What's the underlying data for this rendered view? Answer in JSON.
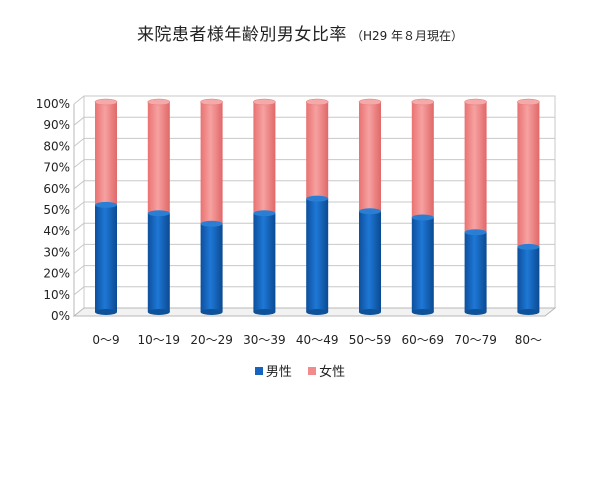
{
  "chart_data": {
    "type": "bar",
    "stacked": true,
    "percent_stacked": true,
    "title": "来院患者様年齢別男女比率",
    "subtitle": "（H29 年８月現在）",
    "categories": [
      "0～9",
      "10～19",
      "20～29",
      "30～39",
      "40～49",
      "50～59",
      "60～69",
      "70～79",
      "80～"
    ],
    "series": [
      {
        "name": "男性",
        "color": "#1565c0",
        "values": [
          51,
          47,
          42,
          47,
          54,
          48,
          45,
          38,
          31
        ]
      },
      {
        "name": "女性",
        "color": "#f28b8b",
        "values": [
          49,
          53,
          58,
          53,
          46,
          52,
          55,
          62,
          69
        ]
      }
    ],
    "yticks": [
      "0%",
      "10%",
      "20%",
      "30%",
      "40%",
      "50%",
      "60%",
      "70%",
      "80%",
      "90%",
      "100%"
    ],
    "ylim": [
      0,
      100
    ],
    "grid": true,
    "legend": "bottom"
  }
}
